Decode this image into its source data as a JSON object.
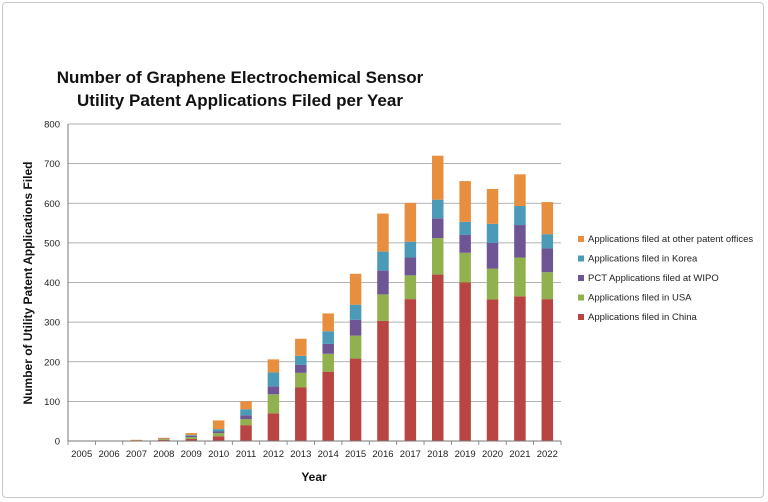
{
  "chart_data": {
    "type": "bar",
    "stacked": true,
    "title": "Number of Graphene Electrochemical Sensor Utility Patent Applications Filed per Year",
    "xlabel": "Year",
    "ylabel": "Number of Utility Patent Applications Filed",
    "ylim": [
      0,
      800
    ],
    "yticks": [
      0,
      100,
      200,
      300,
      400,
      500,
      600,
      700,
      800
    ],
    "grid": true,
    "legend_position": "right",
    "categories": [
      "2005",
      "2006",
      "2007",
      "2008",
      "2009",
      "2010",
      "2011",
      "2012",
      "2013",
      "2014",
      "2015",
      "2016",
      "2017",
      "2018",
      "2019",
      "2020",
      "2021",
      "2022"
    ],
    "series": [
      {
        "name": "Applications filed in China",
        "color": "#b94543",
        "values": [
          0,
          0,
          1,
          3,
          5,
          12,
          40,
          70,
          135,
          175,
          208,
          303,
          358,
          420,
          400,
          357,
          365,
          358
        ]
      },
      {
        "name": "Applications filed in USA",
        "color": "#91b04e",
        "values": [
          0,
          0,
          0,
          2,
          5,
          8,
          15,
          48,
          37,
          45,
          58,
          67,
          60,
          92,
          75,
          78,
          98,
          68
        ]
      },
      {
        "name": "PCT Applications filed at WIPO",
        "color": "#6e5694",
        "values": [
          0,
          0,
          0,
          1,
          3,
          4,
          10,
          20,
          20,
          25,
          40,
          60,
          45,
          50,
          45,
          65,
          82,
          60
        ]
      },
      {
        "name": "Applications filed in Korea",
        "color": "#4a9ab8",
        "values": [
          0,
          0,
          0,
          0,
          2,
          6,
          15,
          35,
          23,
          32,
          38,
          48,
          40,
          47,
          33,
          48,
          48,
          36
        ]
      },
      {
        "name": "Applications filed at other patent offices",
        "color": "#e88f3f",
        "values": [
          1,
          1,
          2,
          2,
          5,
          22,
          20,
          33,
          43,
          45,
          78,
          96,
          98,
          111,
          103,
          88,
          80,
          81
        ]
      }
    ]
  }
}
